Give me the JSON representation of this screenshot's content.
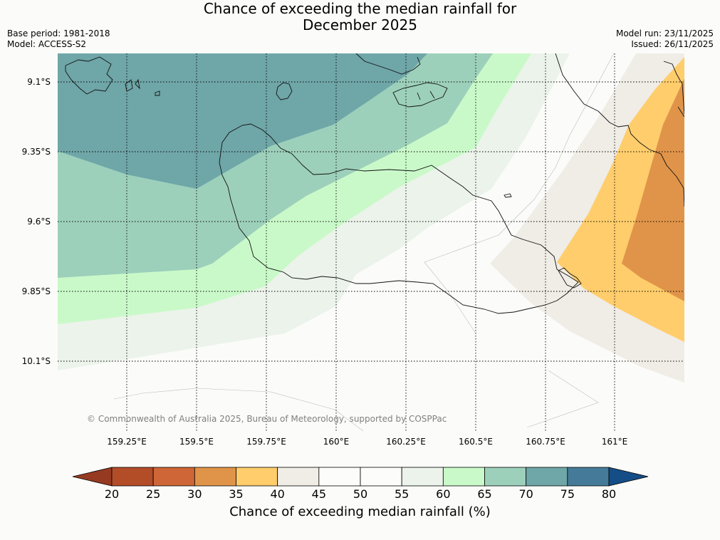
{
  "title": {
    "line1": "Chance of exceeding the median rainfall for",
    "line2": "December 2025"
  },
  "meta": {
    "base_period": "Base period: 1981-2018",
    "model": "Model: ACCESS-S2",
    "model_run": "Model run: 23/11/2025",
    "issued": "Issued: 26/11/2025"
  },
  "copyright": "© Commonwealth of Australia 2025, Bureau of Meteorology, supported by COSPPac",
  "axes": {
    "lon_ticks": [
      "159.25°E",
      "159.5°E",
      "159.75°E",
      "160°E",
      "160.25°E",
      "160.5°E",
      "160.75°E",
      "161°E"
    ],
    "lat_ticks": [
      "9.1°S",
      "9.35°S",
      "9.6°S",
      "9.85°S",
      "10.1°S"
    ]
  },
  "colorbar": {
    "title": "Chance of exceeding median rainfall (%)",
    "labels": [
      "20",
      "25",
      "30",
      "35",
      "40",
      "45",
      "50",
      "55",
      "60",
      "65",
      "70",
      "75",
      "80"
    ],
    "colors": [
      "#b34d28",
      "#cf6637",
      "#e09449",
      "#ffcd6b",
      "#f0ece6",
      "#fcfcfa",
      "#fcfcfa",
      "#ebf3ea",
      "#caf9c9",
      "#9dd0bb",
      "#6fa6a8",
      "#457b99"
    ],
    "low_extend": "#963a22",
    "high_extend": "#154d86"
  },
  "regions": {
    "band_70_75": "#6fa6a8",
    "band_65_70": "#9dd0bb",
    "band_60_65": "#caf9c9",
    "band_55_60": "#ebf3ea",
    "band_40_45": "#f0ece6",
    "band_35_40": "#ffcd6b",
    "band_30_35": "#e09449"
  }
}
